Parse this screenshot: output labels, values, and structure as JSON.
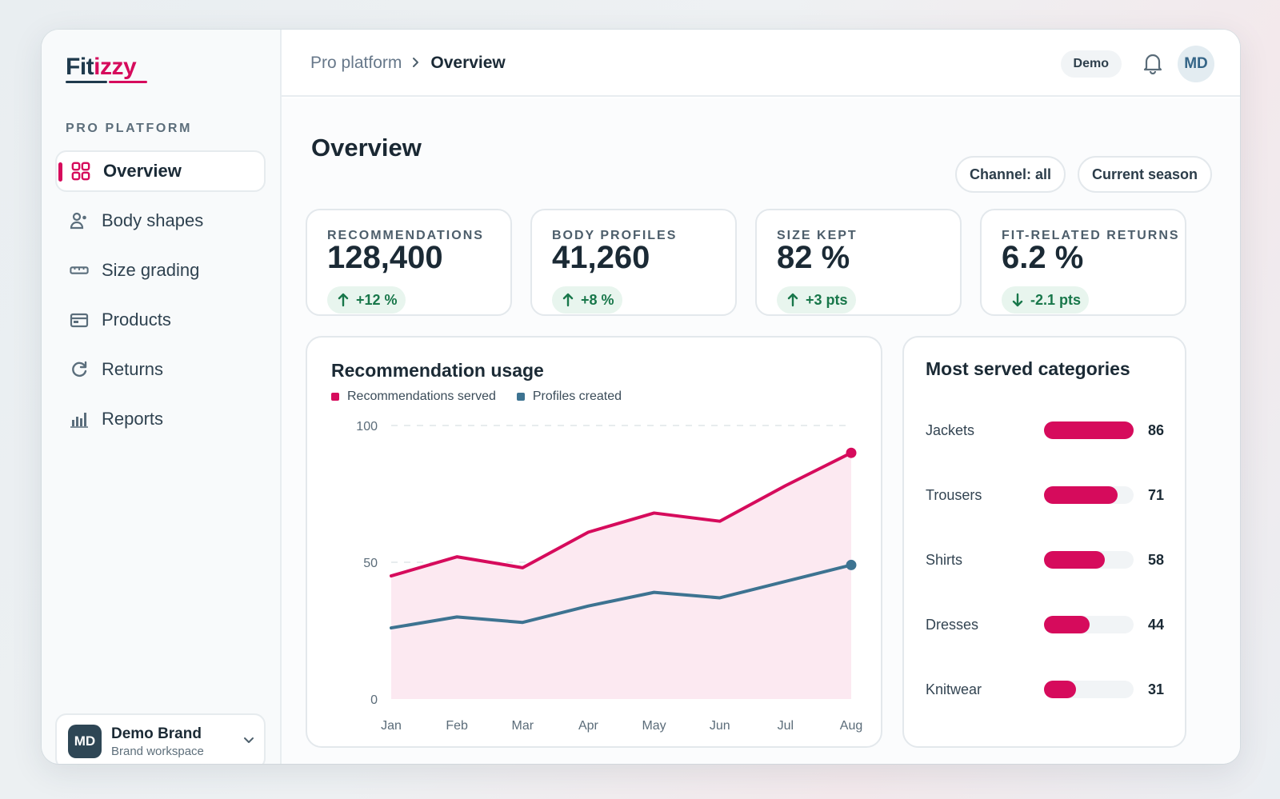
{
  "sidebar": {
    "logo_part1": "Fit",
    "logo_part2": "izzy",
    "tagline": "PRO PLATFORM",
    "items": [
      {
        "label": "Overview",
        "icon": "grid-icon",
        "active": true
      },
      {
        "label": "Body shapes",
        "icon": "user-shape-icon"
      },
      {
        "label": "Size grading",
        "icon": "ruler-icon"
      },
      {
        "label": "Products",
        "icon": "product-box-icon"
      },
      {
        "label": "Returns",
        "icon": "return-arrow-icon"
      },
      {
        "label": "Reports",
        "icon": "bar-chart-icon"
      }
    ],
    "brand": {
      "initials": "MD",
      "name": "Demo Brand",
      "subtitle": "Brand workspace"
    }
  },
  "header": {
    "breadcrumb_root": "Pro platform",
    "breadcrumb_current": "Overview",
    "mode_badge": "Demo",
    "avatar_initials": "MD"
  },
  "main": {
    "title": "Overview",
    "filters": {
      "channel": "Channel: all",
      "season": "Current season"
    },
    "kpis": [
      {
        "label": "RECOMMENDATIONS",
        "value": "128,400",
        "delta": "+12 %",
        "direction": "up"
      },
      {
        "label": "BODY PROFILES",
        "value": "41,260",
        "delta": "+8 %",
        "direction": "up"
      },
      {
        "label": "SIZE KEPT",
        "value": "82 %",
        "delta": "+3 pts",
        "direction": "up"
      },
      {
        "label": "FIT-RELATED RETURNS",
        "value": "6.2 %",
        "delta": "-2.1 pts",
        "direction": "down"
      }
    ],
    "usage_panel_title": "Recommendation usage",
    "categories_panel_title": "Most served categories"
  },
  "colors": {
    "accent": "#d60b5c",
    "secondary": "#3d7391",
    "positive": "#18774a",
    "positive_bg": "#e8f5ee"
  },
  "chart_data": [
    {
      "type": "area",
      "title": "Recommendation usage",
      "categories": [
        "Jan",
        "Feb",
        "Mar",
        "Apr",
        "May",
        "Jun",
        "Jul",
        "Aug"
      ],
      "series": [
        {
          "name": "Recommendations served",
          "values": [
            45,
            52,
            48,
            61,
            68,
            65,
            78,
            90
          ],
          "color": "#d60b5c"
        },
        {
          "name": "Profiles created",
          "values": [
            26,
            30,
            28,
            34,
            39,
            37,
            43,
            49
          ],
          "color": "#3d7391"
        }
      ],
      "ylim": [
        0,
        100
      ],
      "yticks": [
        0,
        50,
        100
      ],
      "grid": true,
      "legend": "top-left"
    },
    {
      "type": "bar",
      "orientation": "horizontal",
      "title": "Most served categories",
      "categories": [
        "Jackets",
        "Trousers",
        "Shirts",
        "Dresses",
        "Knitwear"
      ],
      "values": [
        86,
        71,
        58,
        44,
        31
      ],
      "xlim": [
        0,
        86
      ]
    }
  ]
}
